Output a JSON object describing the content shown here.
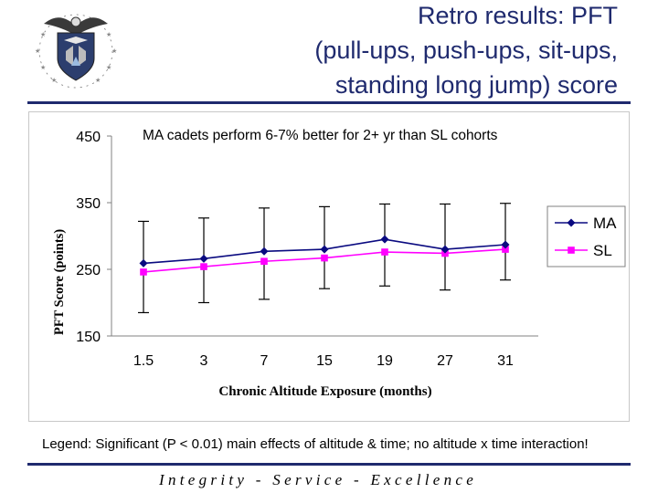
{
  "header": {
    "title_lines": [
      "Retro results: PFT",
      "(pull-ups, push-ups, sit-ups,",
      "standing long jump) score"
    ],
    "title_color": "#1f2a6e",
    "logo": {
      "name": "air-force-academy-seal"
    }
  },
  "chart_data": {
    "type": "line",
    "title": "MA cadets perform 6-7% better for 2+ yr than SL cohorts",
    "xlabel": "Chronic Altitude Exposure (months)",
    "ylabel": "PFT Score (points)",
    "categories": [
      "1.5",
      "3",
      "7",
      "15",
      "19",
      "27",
      "31"
    ],
    "ylim": [
      150,
      450
    ],
    "yticks": [
      "150",
      "250",
      "350",
      "450"
    ],
    "legend_position": "right",
    "series": [
      {
        "name": "MA",
        "color": "#0a0a80",
        "marker": "diamond",
        "values": [
          259,
          266,
          277,
          280,
          295,
          280,
          287
        ],
        "err_upper": [
          322,
          327,
          342,
          344,
          348,
          348,
          349
        ]
      },
      {
        "name": "SL",
        "color": "#ff00ff",
        "marker": "square",
        "values": [
          246,
          254,
          262,
          267,
          276,
          274,
          280
        ],
        "err_lower": [
          185,
          200,
          205,
          221,
          225,
          219,
          234
        ]
      }
    ]
  },
  "footer": {
    "legend_label": "Legend:",
    "legend_text": " Significant (P < 0.01) main effects of altitude & time; no altitude x time interaction!",
    "motto": "Integrity - Service - Excellence"
  }
}
